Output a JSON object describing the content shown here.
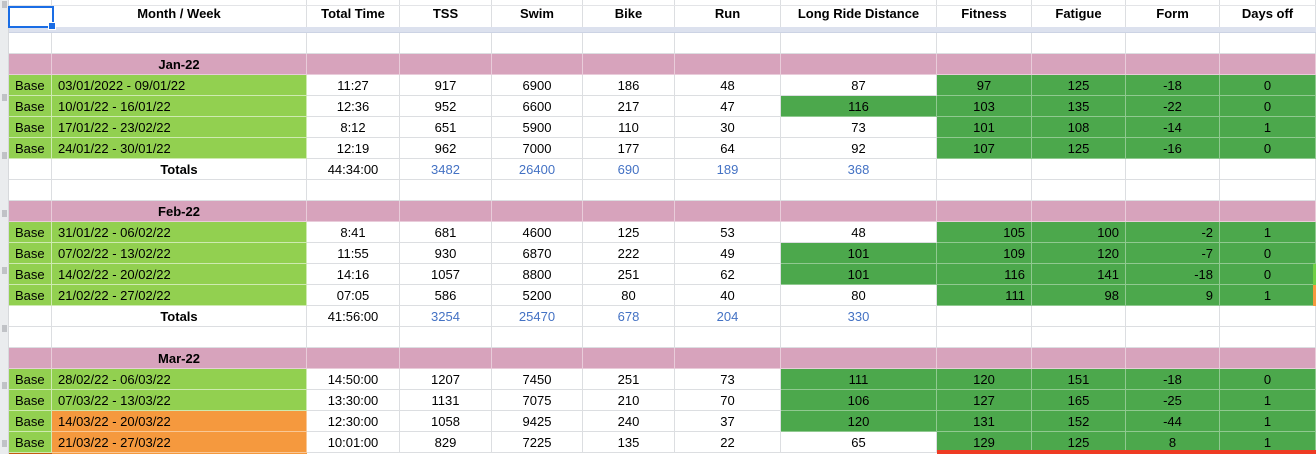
{
  "columns": [
    {
      "key": "phase",
      "label": ""
    },
    {
      "key": "week",
      "label": "Month / Week"
    },
    {
      "key": "total_time",
      "label": "Total Time"
    },
    {
      "key": "tss",
      "label": "TSS"
    },
    {
      "key": "swim",
      "label": "Swim"
    },
    {
      "key": "bike",
      "label": "Bike"
    },
    {
      "key": "run",
      "label": "Run"
    },
    {
      "key": "long_ride",
      "label": "Long Ride Distance"
    },
    {
      "key": "fitness",
      "label": "Fitness"
    },
    {
      "key": "fatigue",
      "label": "Fatigue"
    },
    {
      "key": "form",
      "label": "Form"
    },
    {
      "key": "days_off",
      "label": "Days off"
    }
  ],
  "sections": [
    {
      "month": "Jan-22",
      "number_align": "center",
      "rows": [
        {
          "phase": "Base",
          "week": "03/01/2022 - 09/01/22",
          "week_bg": "lightgreen",
          "total_time": "11:27",
          "tss": "917",
          "swim": "6900",
          "bike": "186",
          "run": "48",
          "long_ride": "87",
          "long_ride_bg": "white",
          "fitness": "97",
          "fatigue": "125",
          "form": "-18",
          "days_off": "0",
          "run_note": false,
          "long_ride_note": false
        },
        {
          "phase": "Base",
          "week": "10/01/22 - 16/01/22",
          "week_bg": "lightgreen",
          "total_time": "12:36",
          "tss": "952",
          "swim": "6600",
          "bike": "217",
          "run": "47",
          "long_ride": "116",
          "long_ride_bg": "green",
          "fitness": "103",
          "fatigue": "135",
          "form": "-22",
          "days_off": "0",
          "run_note": false,
          "long_ride_note": false
        },
        {
          "phase": "Base",
          "week": "17/01/22 - 23/02/22",
          "week_bg": "lightgreen",
          "total_time": "8:12",
          "tss": "651",
          "swim": "5900",
          "bike": "110",
          "run": "30",
          "long_ride": "73",
          "long_ride_bg": "white",
          "fitness": "101",
          "fatigue": "108",
          "form": "-14",
          "days_off": "1",
          "run_note": false,
          "long_ride_note": false
        },
        {
          "phase": "Base",
          "week": "24/01/22 - 30/01/22",
          "week_bg": "lightgreen",
          "total_time": "12:19",
          "tss": "962",
          "swim": "7000",
          "bike": "177",
          "run": "64",
          "long_ride": "92",
          "long_ride_bg": "white",
          "fitness": "107",
          "fatigue": "125",
          "form": "-16",
          "days_off": "0",
          "run_note": false,
          "long_ride_note": false
        }
      ],
      "totals": {
        "label": "Totals",
        "total_time": "44:34:00",
        "tss": "3482",
        "swim": "26400",
        "bike": "690",
        "run": "189",
        "long_ride": "368"
      }
    },
    {
      "month": "Feb-22",
      "number_align": "right",
      "rows": [
        {
          "phase": "Base",
          "week": "31/01/22 - 06/02/22",
          "week_bg": "lightgreen",
          "total_time": "8:41",
          "tss": "681",
          "swim": "4600",
          "bike": "125",
          "run": "53",
          "long_ride": "48",
          "long_ride_bg": "white",
          "fitness": "105",
          "fatigue": "100",
          "form": "-2",
          "days_off": "1",
          "run_note": false,
          "long_ride_note": false
        },
        {
          "phase": "Base",
          "week": "07/02/22 - 13/02/22",
          "week_bg": "lightgreen",
          "total_time": "11:55",
          "tss": "930",
          "swim": "6870",
          "bike": "222",
          "run": "49",
          "long_ride": "101",
          "long_ride_bg": "green",
          "fitness": "109",
          "fatigue": "120",
          "form": "-7",
          "days_off": "0",
          "run_note": false,
          "long_ride_note": false
        },
        {
          "phase": "Base",
          "week": "14/02/22 - 20/02/22",
          "week_bg": "lightgreen",
          "total_time": "14:16",
          "tss": "1057",
          "swim": "8800",
          "bike": "251",
          "run": "62",
          "long_ride": "101",
          "long_ride_bg": "green",
          "fitness": "116",
          "fatigue": "141",
          "form": "-18",
          "days_off": "0",
          "run_note": false,
          "long_ride_note": false
        },
        {
          "phase": "Base",
          "week": "21/02/22 - 27/02/22",
          "week_bg": "lightgreen",
          "total_time": "07:05",
          "tss": "586",
          "swim": "5200",
          "bike": "80",
          "run": "40",
          "long_ride": "80",
          "long_ride_bg": "white",
          "fitness": "111",
          "fatigue": "98",
          "form": "9",
          "days_off": "1",
          "run_note": false,
          "long_ride_note": false
        }
      ],
      "totals": {
        "label": "Totals",
        "total_time": "41:56:00",
        "tss": "3254",
        "swim": "25470",
        "bike": "678",
        "run": "204",
        "long_ride": "330"
      }
    },
    {
      "month": "Mar-22",
      "number_align": "center",
      "rows": [
        {
          "phase": "Base",
          "week": "28/02/22 - 06/03/22",
          "week_bg": "lightgreen",
          "total_time": "14:50:00",
          "tss": "1207",
          "swim": "7450",
          "bike": "251",
          "run": "73",
          "long_ride": "111",
          "long_ride_bg": "green",
          "fitness": "120",
          "fatigue": "151",
          "form": "-18",
          "days_off": "0",
          "run_note": false,
          "long_ride_note": false
        },
        {
          "phase": "Base",
          "week": "07/03/22 - 13/03/22",
          "week_bg": "lightgreen",
          "total_time": "13:30:00",
          "tss": "1131",
          "swim": "7075",
          "bike": "210",
          "run": "70",
          "long_ride": "106",
          "long_ride_bg": "green",
          "fitness": "127",
          "fatigue": "165",
          "form": "-25",
          "days_off": "1",
          "run_note": false,
          "long_ride_note": true
        },
        {
          "phase": "Base",
          "week": "14/03/22 - 20/03/22",
          "week_bg": "orange",
          "total_time": "12:30:00",
          "tss": "1058",
          "swim": "9425",
          "bike": "240",
          "run": "37",
          "long_ride": "120",
          "long_ride_bg": "green",
          "fitness": "131",
          "fatigue": "152",
          "form": "-44",
          "days_off": "1",
          "run_note": true,
          "long_ride_note": true
        },
        {
          "phase": "Base",
          "week": "21/03/22 - 27/03/22",
          "week_bg": "orange",
          "total_time": "10:01:00",
          "tss": "829",
          "swim": "7225",
          "bike": "135",
          "run": "22",
          "long_ride": "65",
          "long_ride_bg": "white",
          "fitness": "129",
          "fatigue": "125",
          "form": "8",
          "days_off": "1",
          "run_note": false,
          "long_ride_note": false
        }
      ],
      "totals": null
    }
  ],
  "colors": {
    "month_band": "#D7A3BC",
    "base_green": "#92D050",
    "fitness_green": "#4CA84C",
    "highlight_orange": "#F5993E",
    "totals_blue": "#4472C4",
    "selection_blue": "#1A6DE5",
    "note_triangle": "#F2A33C",
    "bottom_stripe_red": "#EE3B23",
    "frozen_band": "#DCE1EE"
  }
}
